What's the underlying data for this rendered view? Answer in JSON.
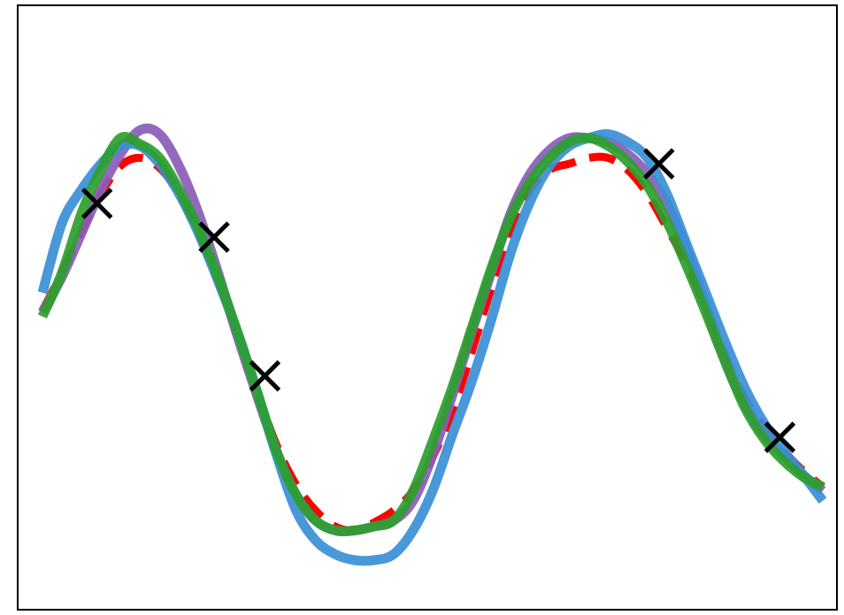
{
  "chart_data": {
    "type": "line",
    "title": "",
    "xlabel": "",
    "ylabel": "",
    "xlim": [
      0,
      10
    ],
    "ylim": [
      -1.5,
      1.55
    ],
    "grid": false,
    "axes_ticks": false,
    "legend": false,
    "series": [
      {
        "key": "true",
        "style": "dashed",
        "color": "#ff0000",
        "x": [
          0.0,
          0.25,
          0.5,
          0.75,
          1.0,
          1.25,
          1.5,
          1.75,
          2.0,
          2.25,
          2.5,
          2.75,
          3.0,
          3.25,
          3.5,
          3.75,
          4.0,
          4.25,
          4.5,
          4.75,
          5.0,
          5.25,
          5.5,
          5.75,
          6.0,
          6.25,
          6.5,
          6.75,
          7.0,
          7.25,
          7.5,
          7.75,
          8.0,
          8.25,
          8.5,
          8.75,
          9.0,
          9.25,
          9.5,
          9.75,
          10.0
        ],
        "y": [
          0.01,
          0.2,
          0.41,
          0.6,
          0.74,
          0.78,
          0.73,
          0.6,
          0.4,
          0.16,
          -0.12,
          -0.4,
          -0.67,
          -0.87,
          -1.0,
          -1.08,
          -1.1,
          -1.06,
          -1.0,
          -0.9,
          -0.73,
          -0.5,
          -0.2,
          0.12,
          0.42,
          0.62,
          0.72,
          0.75,
          0.78,
          0.78,
          0.72,
          0.6,
          0.43,
          0.25,
          0.03,
          -0.22,
          -0.43,
          -0.58,
          -0.7,
          -0.8,
          -0.88
        ]
      },
      {
        "key": "purple",
        "style": "solid",
        "color": "#8a5cb8",
        "x": [
          0.0,
          0.25,
          0.5,
          0.75,
          1.0,
          1.25,
          1.5,
          1.75,
          2.0,
          2.25,
          2.5,
          2.75,
          3.0,
          3.25,
          3.5,
          3.75,
          4.0,
          4.25,
          4.5,
          4.75,
          5.0,
          5.25,
          5.5,
          5.75,
          6.0,
          6.25,
          6.5,
          6.75,
          7.0,
          7.25,
          7.5,
          7.75,
          8.0,
          8.25,
          8.5,
          8.75,
          9.0,
          9.25,
          9.5,
          9.75,
          10.0
        ],
        "y": [
          0.0,
          0.18,
          0.4,
          0.62,
          0.8,
          0.92,
          0.9,
          0.74,
          0.5,
          0.2,
          -0.12,
          -0.42,
          -0.7,
          -0.92,
          -1.05,
          -1.1,
          -1.1,
          -1.08,
          -1.05,
          -0.95,
          -0.72,
          -0.42,
          -0.1,
          0.2,
          0.5,
          0.7,
          0.82,
          0.88,
          0.88,
          0.86,
          0.8,
          0.7,
          0.55,
          0.32,
          0.04,
          -0.25,
          -0.46,
          -0.62,
          -0.72,
          -0.82,
          -0.9
        ]
      },
      {
        "key": "blue",
        "style": "solid",
        "color": "#3a8fd6",
        "x": [
          0.0,
          0.25,
          0.5,
          0.75,
          1.0,
          1.25,
          1.5,
          1.75,
          2.0,
          2.25,
          2.5,
          2.75,
          3.0,
          3.25,
          3.5,
          3.75,
          4.0,
          4.25,
          4.5,
          4.75,
          5.0,
          5.25,
          5.5,
          5.75,
          6.0,
          6.25,
          6.5,
          6.75,
          7.0,
          7.25,
          7.5,
          7.75,
          8.0,
          8.25,
          8.5,
          8.75,
          9.0,
          9.25,
          9.5,
          9.75,
          10.0
        ],
        "y": [
          0.1,
          0.45,
          0.62,
          0.75,
          0.84,
          0.84,
          0.75,
          0.6,
          0.4,
          0.16,
          -0.1,
          -0.4,
          -0.72,
          -1.0,
          -1.15,
          -1.22,
          -1.25,
          -1.25,
          -1.22,
          -1.1,
          -0.9,
          -0.62,
          -0.35,
          -0.04,
          0.3,
          0.56,
          0.74,
          0.84,
          0.88,
          0.9,
          0.86,
          0.78,
          0.6,
          0.35,
          0.1,
          -0.15,
          -0.38,
          -0.56,
          -0.7,
          -0.82,
          -0.95
        ]
      },
      {
        "key": "green",
        "style": "solid",
        "color": "#2ca02c",
        "x": [
          0.0,
          0.25,
          0.5,
          0.75,
          1.0,
          1.25,
          1.5,
          1.75,
          2.0,
          2.25,
          2.5,
          2.75,
          3.0,
          3.25,
          3.5,
          3.75,
          4.0,
          4.25,
          4.5,
          4.75,
          5.0,
          5.25,
          5.5,
          5.75,
          6.0,
          6.25,
          6.5,
          6.75,
          7.0,
          7.25,
          7.5,
          7.75,
          8.0,
          8.25,
          8.5,
          8.75,
          9.0,
          9.25,
          9.5,
          9.75,
          10.0
        ],
        "y": [
          -0.02,
          0.2,
          0.5,
          0.72,
          0.88,
          0.85,
          0.78,
          0.62,
          0.42,
          0.18,
          -0.1,
          -0.4,
          -0.7,
          -0.92,
          -1.05,
          -1.1,
          -1.1,
          -1.08,
          -1.05,
          -0.9,
          -0.65,
          -0.38,
          -0.08,
          0.22,
          0.48,
          0.66,
          0.78,
          0.86,
          0.88,
          0.84,
          0.76,
          0.64,
          0.46,
          0.24,
          0.0,
          -0.25,
          -0.48,
          -0.64,
          -0.75,
          -0.83,
          -0.88
        ]
      }
    ],
    "markers": {
      "shape": "x",
      "color": "#000000",
      "points": [
        {
          "x": 0.7,
          "y": 0.55
        },
        {
          "x": 2.2,
          "y": 0.38
        },
        {
          "x": 2.85,
          "y": -0.32
        },
        {
          "x": 7.9,
          "y": 0.75
        },
        {
          "x": 9.45,
          "y": -0.63
        }
      ]
    }
  }
}
